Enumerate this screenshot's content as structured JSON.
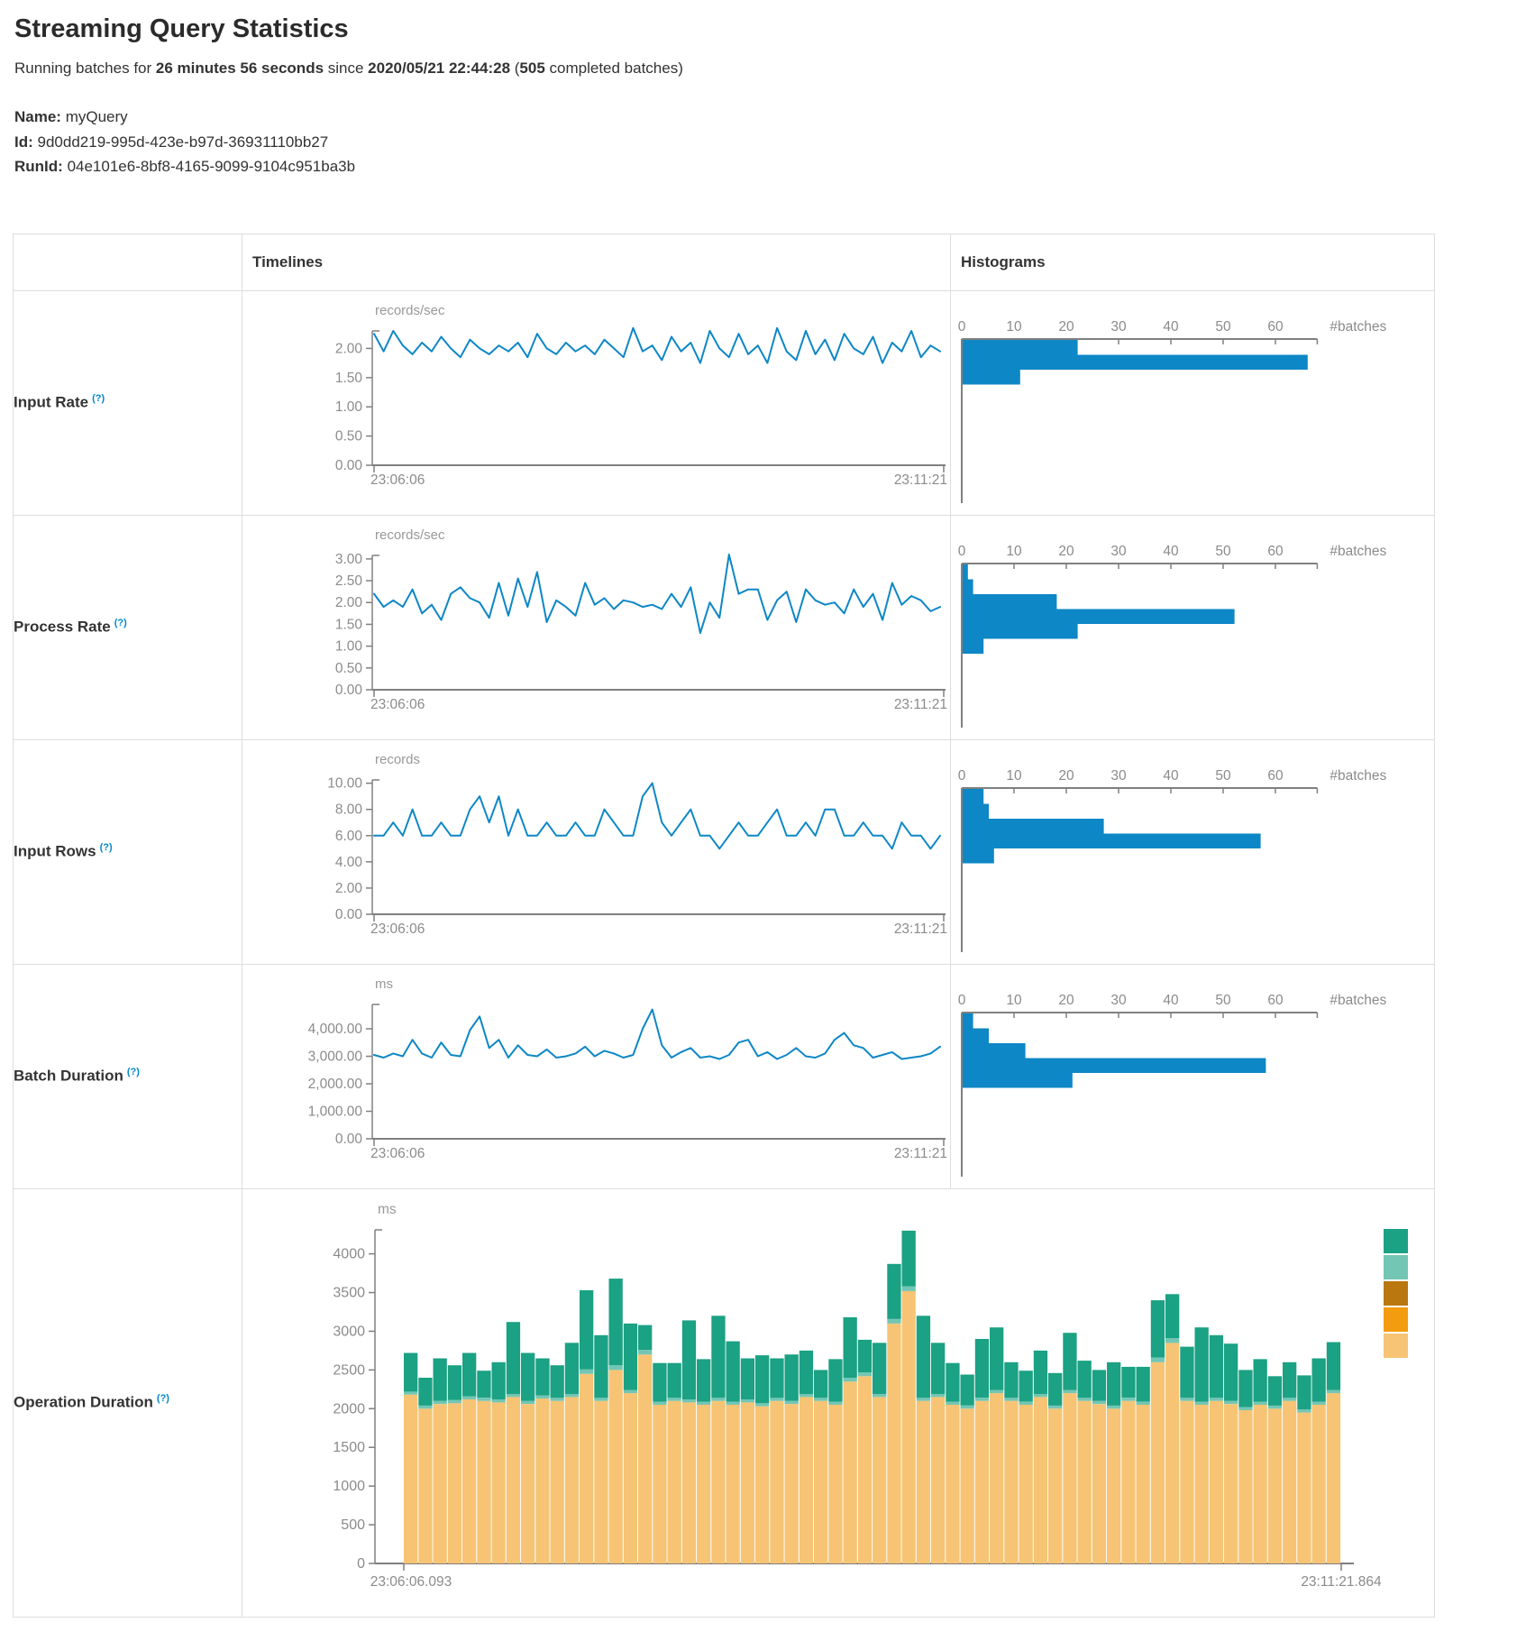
{
  "header": {
    "title": "Streaming Query Statistics",
    "running_prefix": "Running batches for ",
    "duration": "26 minutes 56 seconds",
    "since_word": " since ",
    "start_time": "2020/05/21 22:44:28",
    "paren_open": " (",
    "completed_batches": "505",
    "completed_suffix": " completed batches)"
  },
  "meta": {
    "name_label": "Name:",
    "name_value": "myQuery",
    "id_label": "Id:",
    "id_value": "9d0dd219-995d-423e-b97d-36931110bb27",
    "runid_label": "RunId:",
    "runid_value": "04e101e6-8bf8-4165-9099-9104c951ba3b"
  },
  "table": {
    "col_timelines": "Timelines",
    "col_histograms": "Histograms"
  },
  "rows": [
    {
      "label": "Input Rate",
      "tooltip": "(?)"
    },
    {
      "label": "Process Rate",
      "tooltip": "(?)"
    },
    {
      "label": "Input Rows",
      "tooltip": "(?)"
    },
    {
      "label": "Batch Duration",
      "tooltip": "(?)"
    },
    {
      "label": "Operation Duration",
      "tooltip": "(?)"
    }
  ],
  "colors": {
    "line_blue": "#0d87c6",
    "hist_blue": "#0d87c6",
    "tooltip_blue": "#0088cc",
    "axis_line": "#808080",
    "label_gray": "#8b8b8b",
    "border": "#dddddd",
    "stack_legend": [
      "#1ba183",
      "#73c6b4",
      "#ba770f",
      "#f39c0f",
      "#f6c474"
    ]
  },
  "chart_data": [
    {
      "id": "input-rate-timeline",
      "type": "line",
      "title": "Input Rate",
      "ylabel": "records/sec",
      "x_start": "23:06:06",
      "x_end": "23:11:21",
      "yticks": [
        0,
        0.5,
        1,
        1.5,
        2
      ],
      "tick_format": "2dp",
      "ymax": 2.3,
      "grid": false,
      "values": [
        2.25,
        1.95,
        2.3,
        2.05,
        1.9,
        2.1,
        1.95,
        2.2,
        2.0,
        1.85,
        2.15,
        2.0,
        1.9,
        2.05,
        1.95,
        2.1,
        1.85,
        2.25,
        2.0,
        1.9,
        2.1,
        1.95,
        2.05,
        1.9,
        2.15,
        2.0,
        1.85,
        2.35,
        1.95,
        2.05,
        1.8,
        2.2,
        1.95,
        2.1,
        1.75,
        2.3,
        2.0,
        1.85,
        2.25,
        1.9,
        2.05,
        1.75,
        2.35,
        1.95,
        1.8,
        2.3,
        1.9,
        2.15,
        1.8,
        2.25,
        2.0,
        1.9,
        2.2,
        1.75,
        2.1,
        1.95,
        2.3,
        1.85,
        2.05,
        1.95
      ]
    },
    {
      "id": "input-rate-histogram",
      "type": "bar",
      "xlabel": "#batches",
      "xticks": [
        0,
        10,
        20,
        30,
        40,
        50,
        60
      ],
      "xmax": 68,
      "values": [
        22,
        66,
        11
      ]
    },
    {
      "id": "process-rate-timeline",
      "type": "line",
      "title": "Process Rate",
      "ylabel": "records/sec",
      "x_start": "23:06:06",
      "x_end": "23:11:21",
      "yticks": [
        0,
        0.5,
        1,
        1.5,
        2,
        2.5,
        3
      ],
      "tick_format": "2dp",
      "ymax": 3.08,
      "grid": false,
      "values": [
        2.2,
        1.9,
        2.05,
        1.9,
        2.3,
        1.75,
        1.95,
        1.6,
        2.2,
        2.35,
        2.1,
        2.0,
        1.65,
        2.45,
        1.7,
        2.55,
        1.9,
        2.7,
        1.55,
        2.05,
        1.9,
        1.7,
        2.45,
        1.95,
        2.1,
        1.85,
        2.05,
        2.0,
        1.9,
        1.95,
        1.85,
        2.2,
        1.9,
        2.35,
        1.3,
        2.0,
        1.65,
        3.1,
        2.2,
        2.3,
        2.3,
        1.6,
        2.05,
        2.25,
        1.55,
        2.3,
        2.05,
        1.95,
        2.0,
        1.75,
        2.3,
        1.9,
        2.2,
        1.6,
        2.45,
        1.95,
        2.15,
        2.05,
        1.8,
        1.9
      ]
    },
    {
      "id": "process-rate-histogram",
      "type": "bar",
      "xlabel": "#batches",
      "xticks": [
        0,
        10,
        20,
        30,
        40,
        50,
        60
      ],
      "xmax": 68,
      "values": [
        1,
        2,
        18,
        52,
        22,
        4
      ]
    },
    {
      "id": "input-rows-timeline",
      "type": "line",
      "title": "Input Rows",
      "ylabel": "records",
      "x_start": "23:06:06",
      "x_end": "23:11:21",
      "yticks": [
        0,
        2,
        4,
        6,
        8,
        10
      ],
      "tick_format": "2dp",
      "ymax": 10.25,
      "grid": false,
      "values": [
        6,
        6,
        7,
        6,
        8,
        6,
        6,
        7,
        6,
        6,
        8,
        9,
        7,
        9,
        6,
        8,
        6,
        6,
        7,
        6,
        6,
        7,
        6,
        6,
        8,
        7,
        6,
        6,
        9,
        10,
        7,
        6,
        7,
        8,
        6,
        6,
        5,
        6,
        7,
        6,
        6,
        7,
        8,
        6,
        6,
        7,
        6,
        8,
        8,
        6,
        6,
        7,
        6,
        6,
        5,
        7,
        6,
        6,
        5,
        6
      ]
    },
    {
      "id": "input-rows-histogram",
      "type": "bar",
      "xlabel": "#batches",
      "xticks": [
        0,
        10,
        20,
        30,
        40,
        50,
        60
      ],
      "xmax": 68,
      "values": [
        4,
        5,
        27,
        57,
        6
      ]
    },
    {
      "id": "batch-duration-timeline",
      "type": "line",
      "title": "Batch Duration",
      "ylabel": "ms",
      "x_start": "23:06:06",
      "x_end": "23:11:21",
      "yticks": [
        0,
        1000,
        2000,
        3000,
        4000
      ],
      "tick_format": "comma2",
      "ymax": 4885,
      "grid": false,
      "values": [
        3050,
        2950,
        3100,
        3000,
        3600,
        3100,
        2950,
        3500,
        3050,
        3000,
        3950,
        4450,
        3300,
        3600,
        2950,
        3400,
        3050,
        3000,
        3250,
        2950,
        3000,
        3100,
        3350,
        3000,
        3200,
        3100,
        2950,
        3050,
        4000,
        4700,
        3400,
        2950,
        3150,
        3300,
        2950,
        3000,
        2900,
        3050,
        3500,
        3600,
        3000,
        3150,
        2900,
        3050,
        3300,
        3000,
        2950,
        3100,
        3600,
        3850,
        3400,
        3300,
        2950,
        3050,
        3150,
        2900,
        2950,
        3000,
        3100,
        3350
      ]
    },
    {
      "id": "batch-duration-histogram",
      "type": "bar",
      "xlabel": "#batches",
      "xticks": [
        0,
        10,
        20,
        30,
        40,
        50,
        60
      ],
      "xmax": 68,
      "values": [
        2,
        5,
        12,
        58,
        21
      ]
    },
    {
      "id": "operation-duration-stacked",
      "type": "area",
      "title": "Operation Duration",
      "ylabel": "ms",
      "x_start": "23:06:06.093",
      "x_end": "23:11:21.864",
      "yticks": [
        0,
        500,
        1000,
        1500,
        2000,
        2500,
        3000,
        3500,
        4000
      ],
      "tick_format": "int",
      "ymax": 4310,
      "grid": false,
      "series_colors": [
        "#f6c474",
        "#73c6b4",
        "#1ba183"
      ],
      "legend_colors": [
        "#1ba183",
        "#73c6b4",
        "#ba770f",
        "#f39c0f",
        "#f6c474"
      ],
      "bars": [
        [
          2180,
          40,
          500
        ],
        [
          2000,
          40,
          360
        ],
        [
          2060,
          40,
          550
        ],
        [
          2070,
          40,
          450
        ],
        [
          2120,
          40,
          560
        ],
        [
          2100,
          40,
          350
        ],
        [
          2080,
          40,
          480
        ],
        [
          2150,
          40,
          930
        ],
        [
          2060,
          40,
          620
        ],
        [
          2130,
          40,
          480
        ],
        [
          2100,
          40,
          420
        ],
        [
          2150,
          40,
          660
        ],
        [
          2450,
          60,
          1020
        ],
        [
          2100,
          40,
          810
        ],
        [
          2500,
          60,
          1120
        ],
        [
          2200,
          40,
          860
        ],
        [
          2700,
          60,
          320
        ],
        [
          2050,
          40,
          500
        ],
        [
          2100,
          40,
          450
        ],
        [
          2080,
          40,
          1020
        ],
        [
          2050,
          40,
          550
        ],
        [
          2100,
          40,
          1060
        ],
        [
          2050,
          40,
          780
        ],
        [
          2080,
          40,
          530
        ],
        [
          2030,
          40,
          620
        ],
        [
          2100,
          40,
          510
        ],
        [
          2060,
          40,
          600
        ],
        [
          2150,
          40,
          560
        ],
        [
          2100,
          40,
          360
        ],
        [
          2050,
          40,
          550
        ],
        [
          2350,
          50,
          780
        ],
        [
          2420,
          50,
          420
        ],
        [
          2150,
          40,
          660
        ],
        [
          3100,
          60,
          710
        ],
        [
          3520,
          60,
          720
        ],
        [
          2100,
          40,
          1060
        ],
        [
          2150,
          40,
          660
        ],
        [
          2050,
          40,
          500
        ],
        [
          2000,
          40,
          400
        ],
        [
          2100,
          40,
          760
        ],
        [
          2200,
          40,
          810
        ],
        [
          2100,
          40,
          460
        ],
        [
          2050,
          40,
          400
        ],
        [
          2150,
          40,
          560
        ],
        [
          2000,
          40,
          420
        ],
        [
          2200,
          40,
          740
        ],
        [
          2100,
          40,
          480
        ],
        [
          2060,
          40,
          400
        ],
        [
          2000,
          40,
          560
        ],
        [
          2100,
          40,
          400
        ],
        [
          2050,
          40,
          450
        ],
        [
          2600,
          60,
          740
        ],
        [
          2850,
          60,
          570
        ],
        [
          2100,
          40,
          660
        ],
        [
          2050,
          40,
          960
        ],
        [
          2100,
          40,
          810
        ],
        [
          2060,
          40,
          740
        ],
        [
          1980,
          40,
          480
        ],
        [
          2050,
          40,
          550
        ],
        [
          2000,
          40,
          380
        ],
        [
          2100,
          40,
          460
        ],
        [
          1950,
          40,
          440
        ],
        [
          2050,
          40,
          560
        ],
        [
          2200,
          40,
          620
        ]
      ]
    }
  ]
}
